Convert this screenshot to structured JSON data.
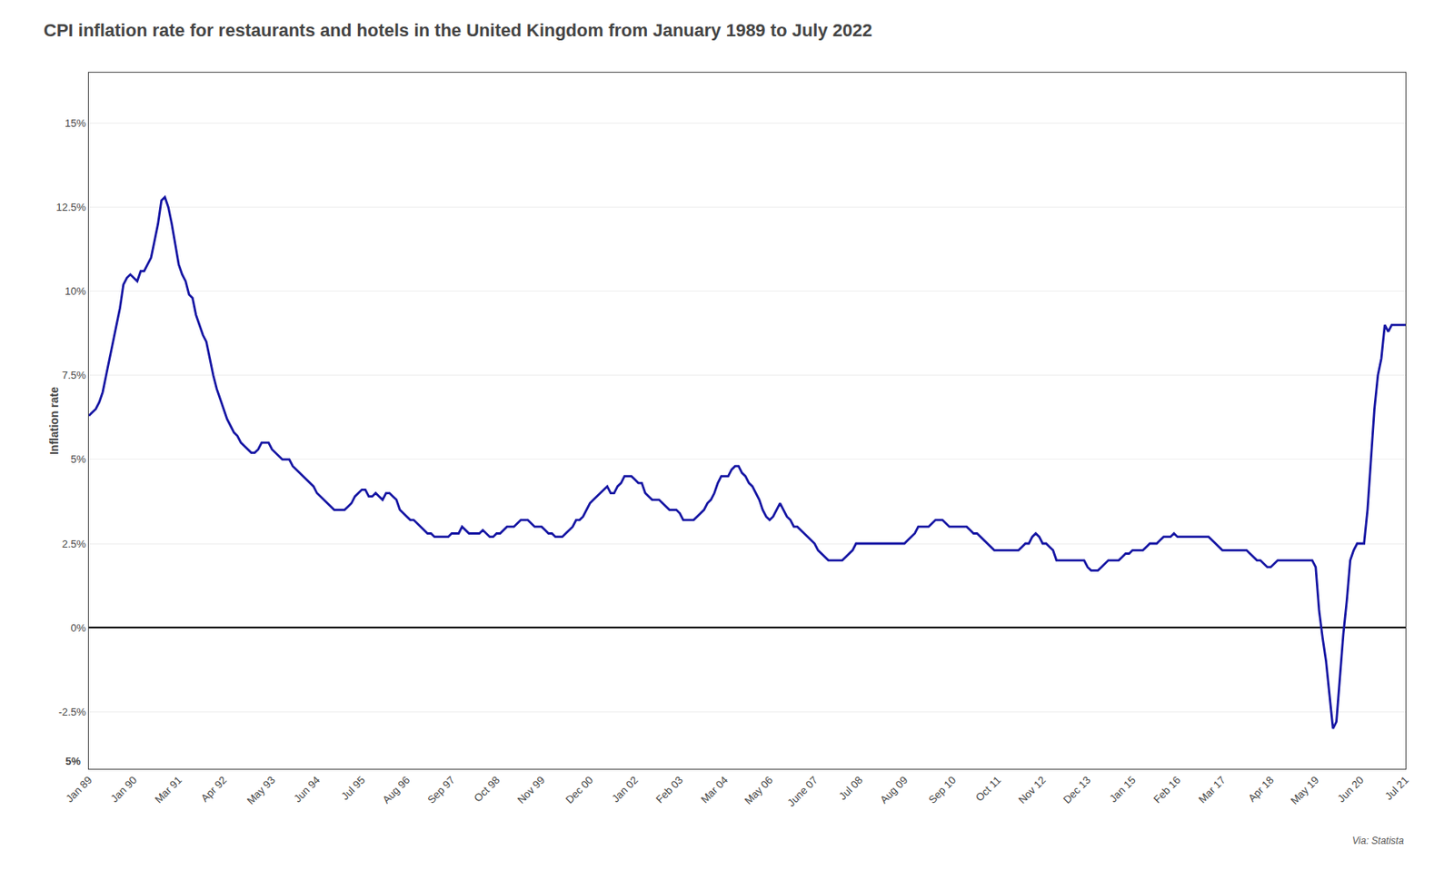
{
  "chart_data": {
    "type": "line",
    "title": "CPI inflation rate for restaurants and hotels in the United Kingdom from January 1989 to July 2022",
    "ylabel": "Inflation rate",
    "annotations": [
      {
        "text": "5%"
      },
      {
        "text": "Via: Statista"
      }
    ],
    "color": "#1515a3",
    "grid": true,
    "ylim": [
      -4.2,
      16.5
    ],
    "yticks": [
      {
        "value": 15.0,
        "label": "15%"
      },
      {
        "value": 12.5,
        "label": "12.5%"
      },
      {
        "value": 10.0,
        "label": "10%"
      },
      {
        "value": 7.5,
        "label": "7.5%"
      },
      {
        "value": 5.0,
        "label": "5%"
      },
      {
        "value": 2.5,
        "label": "2.5%"
      },
      {
        "value": 0.0,
        "label": "0%"
      },
      {
        "value": -2.5,
        "label": "-2.5%"
      }
    ],
    "categories": [
      "Jan 89",
      null,
      null,
      null,
      null,
      null,
      null,
      null,
      null,
      null,
      null,
      null,
      null,
      "Jan 90",
      null,
      null,
      null,
      null,
      null,
      null,
      null,
      null,
      null,
      null,
      null,
      null,
      "Mar 91",
      null,
      null,
      null,
      null,
      null,
      null,
      null,
      null,
      null,
      null,
      null,
      null,
      "Apr 92",
      null,
      null,
      null,
      null,
      null,
      null,
      null,
      null,
      null,
      null,
      null,
      null,
      null,
      "May 93",
      null,
      null,
      null,
      null,
      null,
      null,
      null,
      null,
      null,
      null,
      null,
      null,
      "Jun 94",
      null,
      null,
      null,
      null,
      null,
      null,
      null,
      null,
      null,
      null,
      null,
      null,
      "Jul 95",
      null,
      null,
      null,
      null,
      null,
      null,
      null,
      null,
      null,
      null,
      null,
      null,
      "Aug 96",
      null,
      null,
      null,
      null,
      null,
      null,
      null,
      null,
      null,
      null,
      null,
      null,
      "Sep 97",
      null,
      null,
      null,
      null,
      null,
      null,
      null,
      null,
      null,
      null,
      null,
      null,
      "Oct 98",
      null,
      null,
      null,
      null,
      null,
      null,
      null,
      null,
      null,
      null,
      null,
      null,
      "Nov 99",
      null,
      null,
      null,
      null,
      null,
      null,
      null,
      null,
      null,
      null,
      null,
      null,
      null,
      "Dec 00",
      null,
      null,
      null,
      null,
      null,
      null,
      null,
      null,
      null,
      null,
      null,
      null,
      "Jan 02",
      null,
      null,
      null,
      null,
      null,
      null,
      null,
      null,
      null,
      null,
      null,
      null,
      "Feb 03",
      null,
      null,
      null,
      null,
      null,
      null,
      null,
      null,
      null,
      null,
      null,
      null,
      "Mar 04",
      null,
      null,
      null,
      null,
      null,
      null,
      null,
      null,
      null,
      null,
      null,
      null,
      "May 06",
      null,
      null,
      null,
      null,
      null,
      null,
      null,
      null,
      null,
      null,
      null,
      null,
      "June 07",
      null,
      null,
      null,
      null,
      null,
      null,
      null,
      null,
      null,
      null,
      null,
      null,
      "Jul 08",
      null,
      null,
      null,
      null,
      null,
      null,
      null,
      null,
      null,
      null,
      null,
      null,
      "Aug 09",
      null,
      null,
      null,
      null,
      null,
      null,
      null,
      null,
      null,
      null,
      null,
      null,
      null,
      "Sep 10",
      null,
      null,
      null,
      null,
      null,
      null,
      null,
      null,
      null,
      null,
      null,
      null,
      "Oct 11",
      null,
      null,
      null,
      null,
      null,
      null,
      null,
      null,
      null,
      null,
      null,
      null,
      "Nov 12",
      null,
      null,
      null,
      null,
      null,
      null,
      null,
      null,
      null,
      null,
      null,
      null,
      "Dec 13",
      null,
      null,
      null,
      null,
      null,
      null,
      null,
      null,
      null,
      null,
      null,
      null,
      "Jan 15",
      null,
      null,
      null,
      null,
      null,
      null,
      null,
      null,
      null,
      null,
      null,
      null,
      "Feb 16",
      null,
      null,
      null,
      null,
      null,
      null,
      null,
      null,
      null,
      null,
      null,
      null,
      "Mar 17",
      null,
      null,
      null,
      null,
      null,
      null,
      null,
      null,
      null,
      null,
      null,
      null,
      null,
      "Apr 18",
      null,
      null,
      null,
      null,
      null,
      null,
      null,
      null,
      null,
      null,
      null,
      null,
      "May 19",
      null,
      null,
      null,
      null,
      null,
      null,
      null,
      null,
      null,
      null,
      null,
      null,
      "Jun 20",
      null,
      null,
      null,
      null,
      null,
      null,
      null,
      null,
      null,
      null,
      null,
      null,
      "Jul 21"
    ],
    "values": [
      6.3,
      6.4,
      6.5,
      6.7,
      7.0,
      7.5,
      8.0,
      8.5,
      9.0,
      9.5,
      10.2,
      10.4,
      10.5,
      10.4,
      10.3,
      10.6,
      10.6,
      10.8,
      11.0,
      11.5,
      12.0,
      12.7,
      12.8,
      12.5,
      12.0,
      11.4,
      10.8,
      10.5,
      10.3,
      9.9,
      9.8,
      9.3,
      9.0,
      8.7,
      8.5,
      8.0,
      7.5,
      7.1,
      6.8,
      6.5,
      6.2,
      6.0,
      5.8,
      5.7,
      5.5,
      5.4,
      5.3,
      5.2,
      5.2,
      5.3,
      5.5,
      5.5,
      5.5,
      5.3,
      5.2,
      5.1,
      5.0,
      5.0,
      5.0,
      4.8,
      4.7,
      4.6,
      4.5,
      4.4,
      4.3,
      4.2,
      4.0,
      3.9,
      3.8,
      3.7,
      3.6,
      3.5,
      3.5,
      3.5,
      3.5,
      3.6,
      3.7,
      3.9,
      4.0,
      4.1,
      4.1,
      3.9,
      3.9,
      4.0,
      3.9,
      3.8,
      4.0,
      4.0,
      3.9,
      3.8,
      3.5,
      3.4,
      3.3,
      3.2,
      3.2,
      3.1,
      3.0,
      2.9,
      2.8,
      2.8,
      2.7,
      2.7,
      2.7,
      2.7,
      2.7,
      2.8,
      2.8,
      2.8,
      3.0,
      2.9,
      2.8,
      2.8,
      2.8,
      2.8,
      2.9,
      2.8,
      2.7,
      2.7,
      2.8,
      2.8,
      2.9,
      3.0,
      3.0,
      3.0,
      3.1,
      3.2,
      3.2,
      3.2,
      3.1,
      3.0,
      3.0,
      3.0,
      2.9,
      2.8,
      2.8,
      2.7,
      2.7,
      2.7,
      2.8,
      2.9,
      3.0,
      3.2,
      3.2,
      3.3,
      3.5,
      3.7,
      3.8,
      3.9,
      4.0,
      4.1,
      4.2,
      4.0,
      4.0,
      4.2,
      4.3,
      4.5,
      4.5,
      4.5,
      4.4,
      4.3,
      4.3,
      4.0,
      3.9,
      3.8,
      3.8,
      3.8,
      3.7,
      3.6,
      3.5,
      3.5,
      3.5,
      3.4,
      3.2,
      3.2,
      3.2,
      3.2,
      3.3,
      3.4,
      3.5,
      3.7,
      3.8,
      4.0,
      4.3,
      4.5,
      4.5,
      4.5,
      4.7,
      4.8,
      4.8,
      4.6,
      4.5,
      4.3,
      4.2,
      4.0,
      3.8,
      3.5,
      3.3,
      3.2,
      3.3,
      3.5,
      3.7,
      3.5,
      3.3,
      3.2,
      3.0,
      3.0,
      2.9,
      2.8,
      2.7,
      2.6,
      2.5,
      2.3,
      2.2,
      2.1,
      2.0,
      2.0,
      2.0,
      2.0,
      2.0,
      2.1,
      2.2,
      2.3,
      2.5,
      2.5,
      2.5,
      2.5,
      2.5,
      2.5,
      2.5,
      2.5,
      2.5,
      2.5,
      2.5,
      2.5,
      2.5,
      2.5,
      2.5,
      2.6,
      2.7,
      2.8,
      3.0,
      3.0,
      3.0,
      3.0,
      3.1,
      3.2,
      3.2,
      3.2,
      3.1,
      3.0,
      3.0,
      3.0,
      3.0,
      3.0,
      3.0,
      2.9,
      2.8,
      2.8,
      2.7,
      2.6,
      2.5,
      2.4,
      2.3,
      2.3,
      2.3,
      2.3,
      2.3,
      2.3,
      2.3,
      2.3,
      2.4,
      2.5,
      2.5,
      2.7,
      2.8,
      2.7,
      2.5,
      2.5,
      2.4,
      2.3,
      2.0,
      2.0,
      2.0,
      2.0,
      2.0,
      2.0,
      2.0,
      2.0,
      2.0,
      1.8,
      1.7,
      1.7,
      1.7,
      1.8,
      1.9,
      2.0,
      2.0,
      2.0,
      2.0,
      2.1,
      2.2,
      2.2,
      2.3,
      2.3,
      2.3,
      2.3,
      2.4,
      2.5,
      2.5,
      2.5,
      2.6,
      2.7,
      2.7,
      2.7,
      2.8,
      2.7,
      2.7,
      2.7,
      2.7,
      2.7,
      2.7,
      2.7,
      2.7,
      2.7,
      2.7,
      2.6,
      2.5,
      2.4,
      2.3,
      2.3,
      2.3,
      2.3,
      2.3,
      2.3,
      2.3,
      2.3,
      2.2,
      2.1,
      2.0,
      2.0,
      1.9,
      1.8,
      1.8,
      1.9,
      2.0,
      2.0,
      2.0,
      2.0,
      2.0,
      2.0,
      2.0,
      2.0,
      2.0,
      2.0,
      2.0,
      1.8,
      0.5,
      -0.3,
      -1.0,
      -2.0,
      -3.0,
      -2.8,
      -1.5,
      -0.2,
      0.8,
      2.0,
      2.3,
      2.5,
      2.5,
      2.5,
      3.5,
      5.0,
      6.5,
      7.5,
      8.0,
      9.0,
      8.8,
      9.0,
      9.0,
      9.0,
      9.0,
      9.0
    ]
  }
}
